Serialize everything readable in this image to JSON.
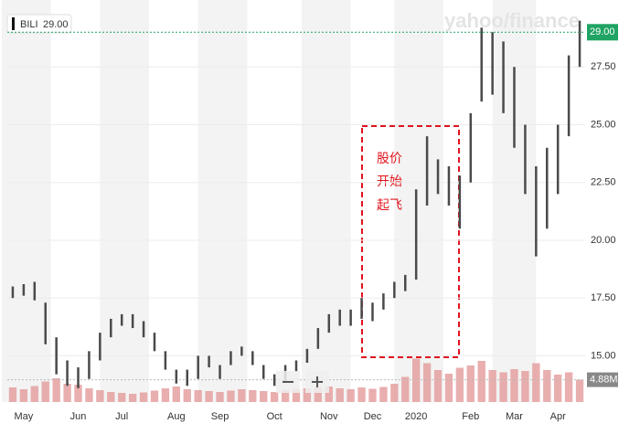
{
  "chart_data": {
    "type": "range_bar",
    "watermark": "yahoo/finance",
    "annotation": [
      "股价",
      "开始",
      "起飞"
    ],
    "y_marker": {
      "value": 29,
      "label": "29.00"
    },
    "categories": [
      null,
      "May",
      null,
      null,
      null,
      null,
      "Jun",
      null,
      null,
      null,
      "Jul",
      null,
      null,
      null,
      null,
      "Aug",
      null,
      null,
      null,
      "Sep",
      null,
      null,
      null,
      null,
      "Oct",
      null,
      null,
      null,
      null,
      "Nov",
      null,
      null,
      null,
      "Dec",
      null,
      null,
      null,
      "2020",
      null,
      null,
      null,
      null,
      "Feb",
      null,
      null,
      null,
      "Mar",
      null,
      null,
      null,
      "Apr",
      null,
      null
    ],
    "series": [
      {
        "name": "BILI",
        "color": "#4a4a4a",
        "low": [
          17.5,
          17.6,
          17.4,
          15.5,
          14.2,
          13.7,
          13.6,
          14.0,
          14.8,
          15.8,
          16.3,
          16.2,
          15.8,
          15.2,
          14.4,
          13.8,
          13.7,
          14.0,
          14.5,
          14.0,
          14.6,
          15.0,
          14.6,
          14.0,
          13.7,
          13.9,
          14.3,
          14.7,
          15.3,
          16.0,
          16.3,
          16.3,
          16.6,
          16.5,
          17.0,
          17.5,
          17.8,
          18.3,
          21.5,
          22.0,
          21.5,
          20.5,
          22.5,
          26.0,
          26.3,
          25.5,
          24.0,
          22.0,
          19.3,
          20.5,
          22.0,
          24.5,
          27.5
        ],
        "high": [
          18.0,
          18.1,
          18.2,
          17.3,
          15.8,
          14.8,
          14.5,
          15.2,
          16.0,
          16.6,
          16.8,
          16.8,
          16.5,
          16.0,
          15.2,
          14.4,
          14.4,
          15.0,
          15.0,
          14.6,
          15.2,
          15.4,
          15.2,
          14.6,
          14.2,
          14.6,
          14.8,
          15.3,
          16.2,
          16.8,
          17.0,
          17.0,
          17.5,
          17.3,
          17.7,
          18.2,
          18.5,
          22.2,
          24.5,
          23.5,
          23.2,
          22.8,
          25.5,
          29.2,
          29.0,
          28.6,
          27.5,
          25.0,
          23.2,
          24.0,
          25.0,
          28.0,
          29.5
        ]
      }
    ],
    "volume": {
      "color": "#e39a9a",
      "axis": "y2",
      "values": [
        3.2,
        2.8,
        3.5,
        4.5,
        5.2,
        4.0,
        3.8,
        3.0,
        2.6,
        2.2,
        2.0,
        1.8,
        2.1,
        2.5,
        3.0,
        3.4,
        2.8,
        2.6,
        2.4,
        2.2,
        2.5,
        2.8,
        2.6,
        2.4,
        2.2,
        2.6,
        2.8,
        3.0,
        3.2,
        3.4,
        3.0,
        2.8,
        3.2,
        2.9,
        3.3,
        4.0,
        5.5,
        9.5,
        8.5,
        7.0,
        6.2,
        7.5,
        8.0,
        9.0,
        7.0,
        6.5,
        7.2,
        6.8,
        8.5,
        7.0,
        6.0,
        6.5,
        4.88
      ]
    },
    "ylim": [
      13,
      30
    ],
    "yticks": [
      {
        "value": 15,
        "label": "15.00"
      },
      {
        "value": 17.5,
        "label": "17.50"
      },
      {
        "value": 20,
        "label": "20.00"
      },
      {
        "value": 22.5,
        "label": "22.50"
      },
      {
        "value": 25,
        "label": "25.00"
      },
      {
        "value": 27.5,
        "label": "27.50"
      }
    ],
    "y2lim": [
      0,
      12
    ],
    "y2ticks": [
      {
        "value": 4.88,
        "label": "4.88M"
      }
    ]
  }
}
